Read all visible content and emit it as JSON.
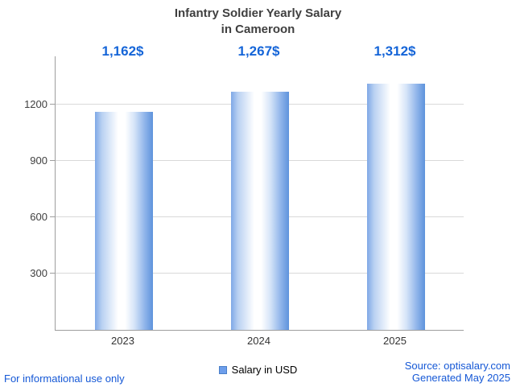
{
  "title": {
    "line1": "Infantry Soldier Yearly Salary",
    "line2": "in Cameroon"
  },
  "chart_data": {
    "type": "bar",
    "title": "Infantry Soldier Yearly Salary in Cameroon",
    "categories": [
      "2023",
      "2024",
      "2025"
    ],
    "values": [
      1162,
      1267,
      1312
    ],
    "value_labels": [
      "1,162$",
      "1,267$",
      "1,312$"
    ],
    "series_name": "Salary in USD",
    "xlabel": "",
    "ylabel": "",
    "yticks": [
      300,
      600,
      900,
      1200
    ],
    "ylim": [
      0,
      1457
    ],
    "grid": true,
    "legend_position": "bottom"
  },
  "colors": {
    "value_label_blue": "#1565d8",
    "footer_blue": "#1558d6",
    "bar_edge_blue": "#5e93dc",
    "bar_center": "#ffffff",
    "legend_square": "#6d9eeb",
    "axis_gray": "#9e9e9e",
    "grid_gray": "#d9d9d9"
  },
  "legend": {
    "label": "Salary in USD"
  },
  "footer": {
    "left": "For informational use only",
    "source": "Source: optisalary.com",
    "generated": "Generated May 2025"
  }
}
